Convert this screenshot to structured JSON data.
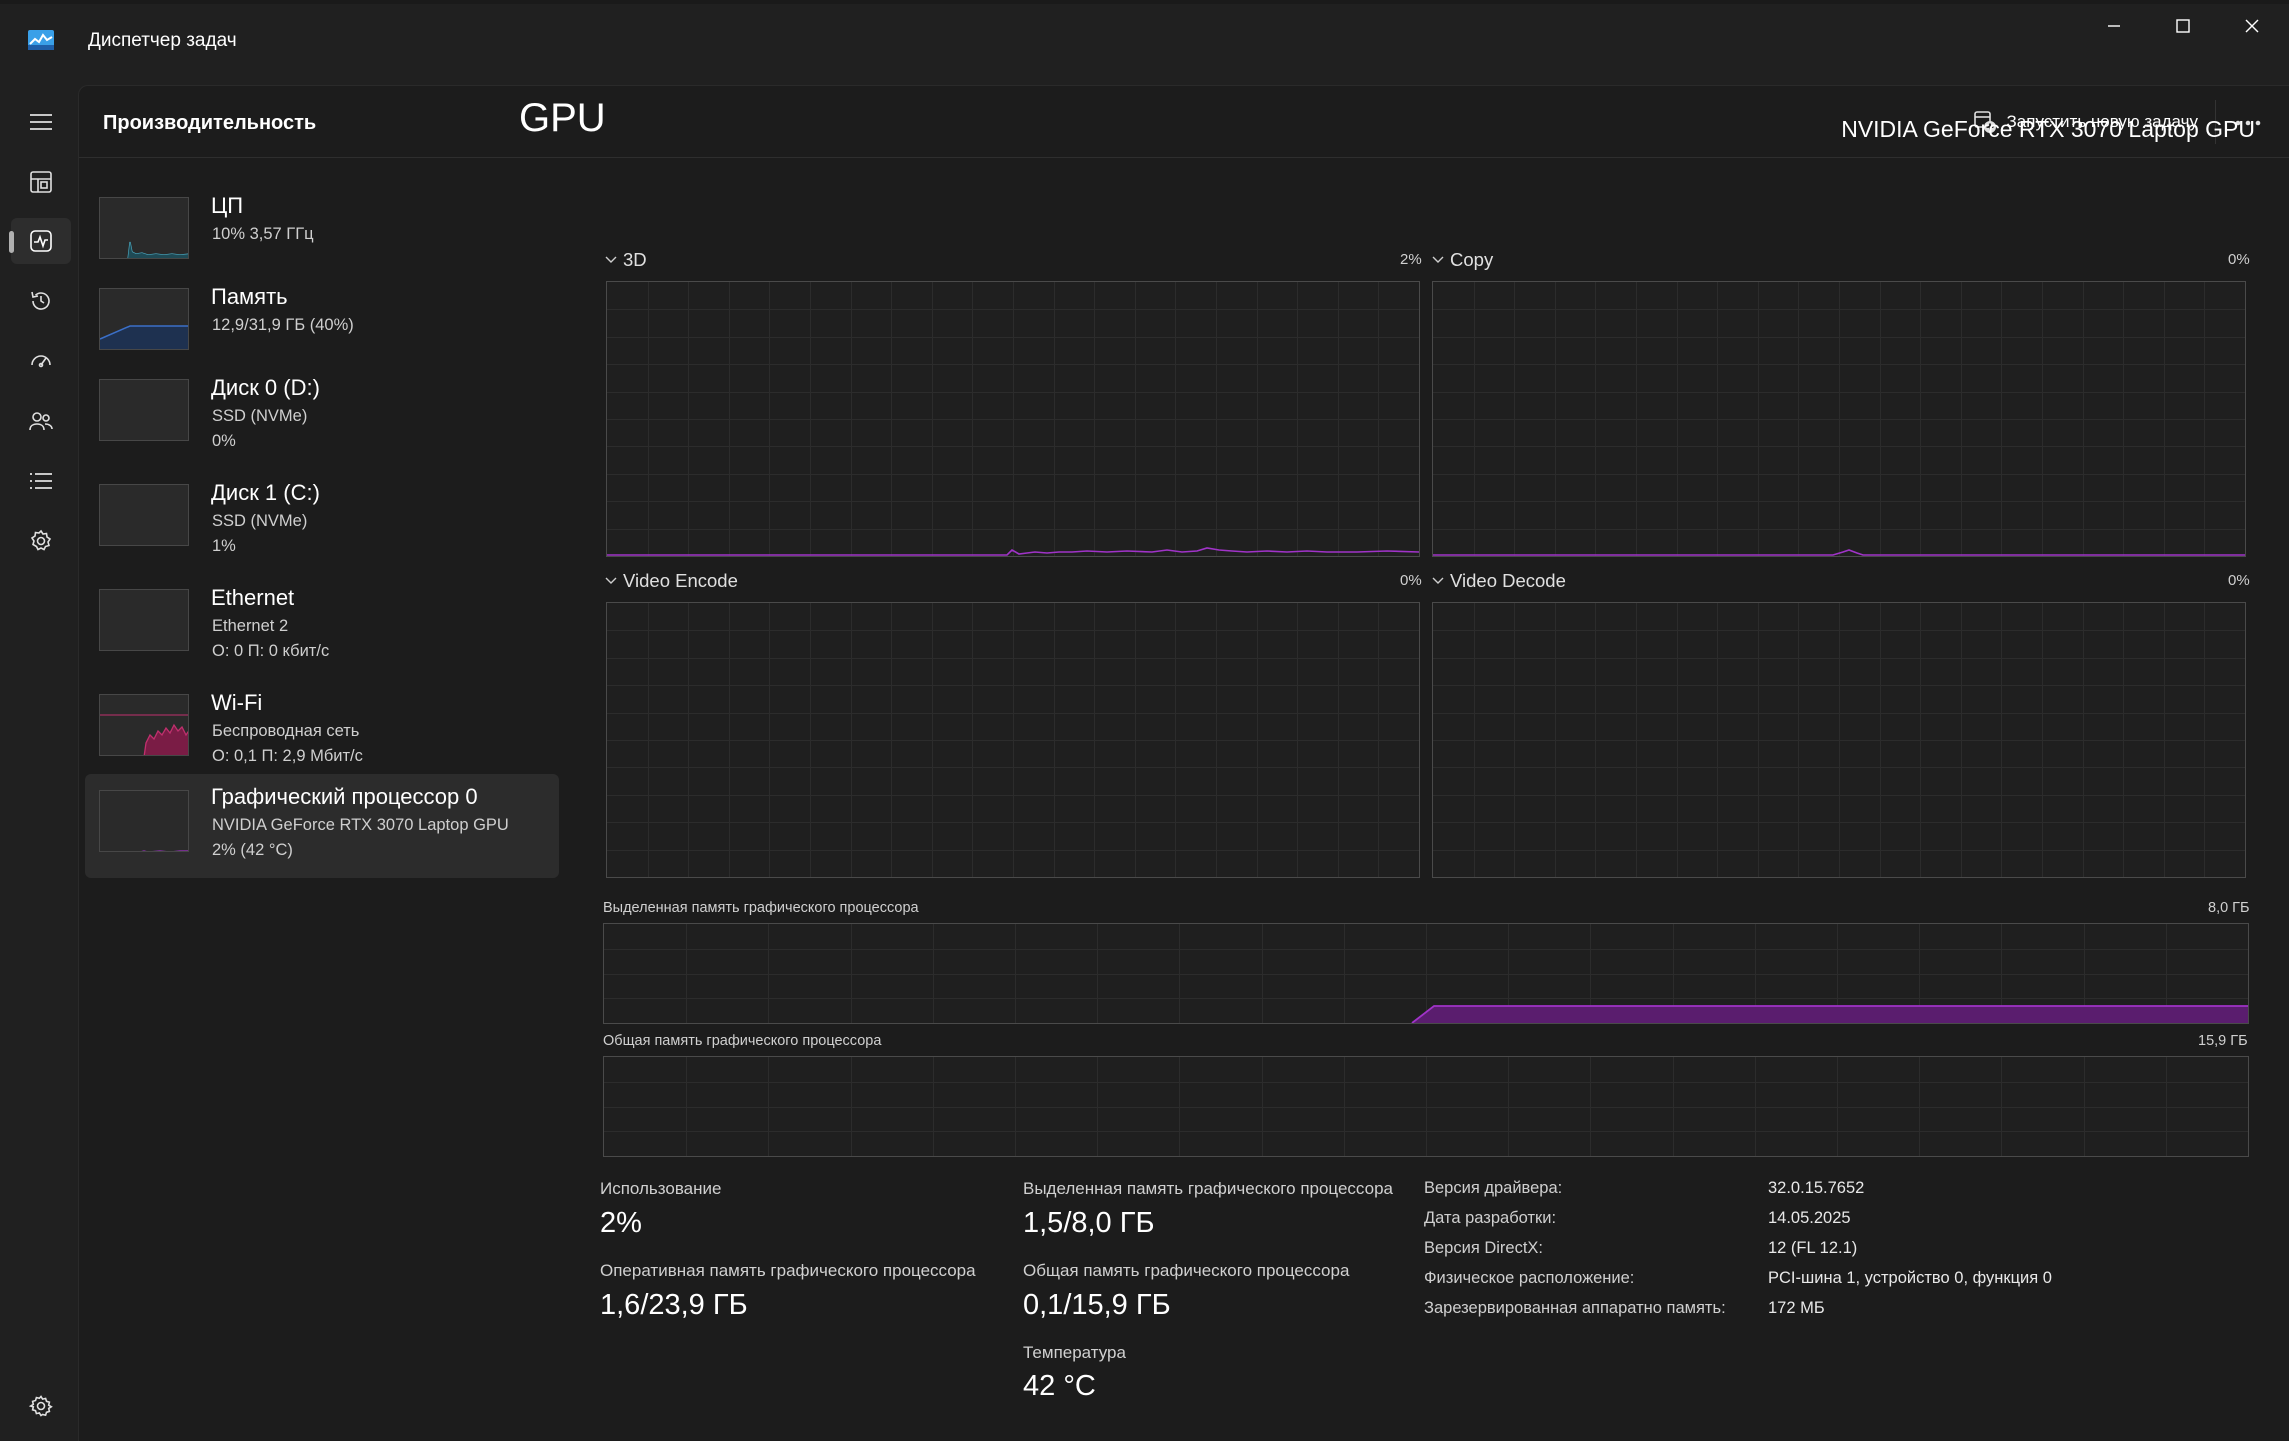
{
  "window": {
    "title": "Диспетчер задач"
  },
  "header": {
    "page_title": "Производительность",
    "new_task_label": "Запустить новую задачу",
    "more_label": "···"
  },
  "rail": {
    "items": [
      "menu-icon",
      "processes-icon",
      "performance-icon",
      "app-history-icon",
      "startup-icon",
      "users-icon",
      "details-icon",
      "services-icon",
      "settings-icon"
    ],
    "active": "performance-icon"
  },
  "sidebar": {
    "items": [
      {
        "name": "ЦП",
        "sub1": "10%  3,57 ГГц",
        "sub2": ""
      },
      {
        "name": "Память",
        "sub1": "12,9/31,9 ГБ (40%)",
        "sub2": ""
      },
      {
        "name": "Диск 0 (D:)",
        "sub1": "SSD (NVMe)",
        "sub2": "0%"
      },
      {
        "name": "Диск 1 (C:)",
        "sub1": "SSD (NVMe)",
        "sub2": "1%"
      },
      {
        "name": "Ethernet",
        "sub1": "Ethernet 2",
        "sub2": "О: 0  П: 0 кбит/с"
      },
      {
        "name": "Wi-Fi",
        "sub1": "Беспроводная сеть",
        "sub2": "О: 0,1  П: 2,9 Мбит/с"
      },
      {
        "name": "Графический процессор 0",
        "sub1": "NVIDIA GeForce RTX 3070 Laptop GPU",
        "sub2": "2%  (42 °C)"
      }
    ],
    "selected_index": 6,
    "colors": {
      "cpu": "#4aa8c0",
      "memory": "#3b6fc7",
      "wifi": "#c0306e",
      "gpu": "#a033c8"
    }
  },
  "main": {
    "title": "GPU",
    "model": "NVIDIA GeForce RTX 3070 Laptop GPU",
    "engines": [
      {
        "label": "3D",
        "pct": "2%"
      },
      {
        "label": "Copy",
        "pct": "0%"
      },
      {
        "label": "Video Encode",
        "pct": "0%"
      },
      {
        "label": "Video Decode",
        "pct": "0%"
      }
    ],
    "dedicated_label": "Выделенная память графического процессора",
    "dedicated_max": "8,0 ГБ",
    "shared_label": "Общая память графического процессора",
    "shared_max": "15,9 ГБ",
    "accent": "#a033c8"
  },
  "stats": {
    "usage_label": "Использование",
    "usage_value": "2%",
    "ded_label": "Выделенная память графического процессора",
    "ded_value": "1,5/8,0 ГБ",
    "ram_label": "Оперативная память графического процессора",
    "ram_value": "1,6/23,9 ГБ",
    "shared_label": "Общая память графического процессора",
    "shared_value": "0,1/15,9 ГБ",
    "temp_label": "Температура",
    "temp_value": "42 °C"
  },
  "info": [
    {
      "key": "Версия драйвера:",
      "value": "32.0.15.7652"
    },
    {
      "key": "Дата разработки:",
      "value": "14.05.2025"
    },
    {
      "key": "Версия DirectX:",
      "value": "12 (FL 12.1)"
    },
    {
      "key": "Физическое расположение:",
      "value": "PCI-шина 1, устройство 0, функция 0"
    },
    {
      "key": "Зарезервированная аппаратно память:",
      "value": "172 МБ"
    }
  ]
}
